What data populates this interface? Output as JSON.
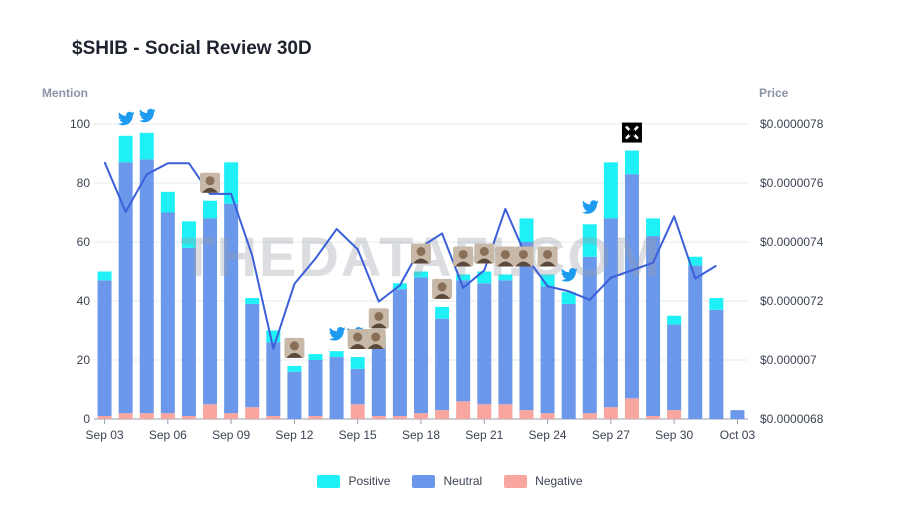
{
  "title": "$SHIB - Social Review 30D",
  "watermark": "THEDATAFI.COM",
  "colors": {
    "positive": "#1ff0f5",
    "neutral": "#6b98ea",
    "negative": "#f9a5a0",
    "price": "#3b5fd9",
    "grid": "#e6e8ec"
  },
  "chart_data": {
    "type": "bar",
    "stacked": true,
    "title": "$SHIB - Social Review 30D",
    "ylabel": "Mention",
    "y2label": "Price",
    "ylim": [
      0,
      100
    ],
    "y2lim": [
      6.8e-06,
      7.8e-06
    ],
    "yticks": [
      0,
      20,
      40,
      60,
      80,
      100
    ],
    "y2ticks": [
      "$0.0000068",
      "$0.000007",
      "$0.0000072",
      "$0.0000074",
      "$0.0000076",
      "$0.0000078"
    ],
    "y2tick_values": [
      6.8e-06,
      7e-06,
      7.2e-06,
      7.4e-06,
      7.6e-06,
      7.8e-06
    ],
    "xtick_labels": [
      "Sep 03",
      "Sep 06",
      "Sep 09",
      "Sep 12",
      "Sep 15",
      "Sep 18",
      "Sep 21",
      "Sep 24",
      "Sep 27",
      "Sep 30",
      "Oct 03"
    ],
    "xtick_index": [
      0,
      3,
      6,
      9,
      12,
      15,
      18,
      21,
      24,
      27,
      30
    ],
    "categories": [
      "Sep 03",
      "Sep 04",
      "Sep 05",
      "Sep 06",
      "Sep 07",
      "Sep 08",
      "Sep 09",
      "Sep 10",
      "Sep 11",
      "Sep 12",
      "Sep 13",
      "Sep 14",
      "Sep 15",
      "Sep 16",
      "Sep 17",
      "Sep 18",
      "Sep 19",
      "Sep 20",
      "Sep 21",
      "Sep 22",
      "Sep 23",
      "Sep 24",
      "Sep 25",
      "Sep 26",
      "Sep 27",
      "Sep 28",
      "Sep 29",
      "Sep 30",
      "Oct 01",
      "Oct 02",
      "Oct 03"
    ],
    "series": [
      {
        "name": "Negative",
        "values": [
          1,
          2,
          2,
          2,
          1,
          5,
          2,
          4,
          1,
          0,
          1,
          0,
          5,
          1,
          1,
          2,
          3,
          6,
          5,
          5,
          3,
          2,
          0,
          2,
          4,
          7,
          1,
          3,
          0,
          0,
          0
        ]
      },
      {
        "name": "Neutral",
        "values": [
          46,
          85,
          86,
          68,
          57,
          63,
          71,
          35,
          25,
          16,
          19,
          21,
          12,
          26,
          43,
          46,
          31,
          41,
          41,
          42,
          57,
          43,
          39,
          53,
          64,
          76,
          61,
          29,
          52,
          37,
          3
        ]
      },
      {
        "name": "Positive",
        "values": [
          3,
          9,
          9,
          7,
          9,
          6,
          14,
          2,
          4,
          2,
          2,
          2,
          4,
          1,
          2,
          2,
          4,
          2,
          4,
          2,
          8,
          4,
          4,
          11,
          19,
          8,
          6,
          3,
          3,
          4,
          0
        ]
      }
    ],
    "price": {
      "name": "Price",
      "values": [
        7.671e-06,
        7.502e-06,
        7.629e-06,
        7.667e-06,
        7.667e-06,
        7.563e-06,
        7.563e-06,
        7.354e-06,
        7.039e-06,
        7.258e-06,
        7.344e-06,
        7.444e-06,
        7.375e-06,
        7.198e-06,
        7.253e-06,
        7.383e-06,
        7.429e-06,
        7.245e-06,
        7.304e-06,
        7.512e-06,
        7.348e-06,
        7.25e-06,
        7.233e-06,
        7.204e-06,
        7.279e-06,
        7.304e-06,
        7.33e-06,
        7.487e-06,
        7.276e-06,
        7.32e-06
      ]
    },
    "legend": [
      "Positive",
      "Neutral",
      "Negative"
    ],
    "legend_position": "bottom-center",
    "annotations": [
      {
        "day": 1,
        "icon": "twitter-icon"
      },
      {
        "day": 2,
        "icon": "twitter-icon"
      },
      {
        "day": 5,
        "icon": "avatar-icon"
      },
      {
        "day": 9,
        "icon": "avatar-icon"
      },
      {
        "day": 11,
        "icon": "twitter-icon"
      },
      {
        "day": 11,
        "icon": "twitter-icon"
      },
      {
        "day": 12,
        "icon": "avatar-icon"
      },
      {
        "day": 12,
        "icon": "avatar-icon"
      },
      {
        "day": 13,
        "icon": "avatar-icon"
      },
      {
        "day": 15,
        "icon": "avatar-icon"
      },
      {
        "day": 16,
        "icon": "avatar-icon"
      },
      {
        "day": 17,
        "icon": "avatar-icon"
      },
      {
        "day": 18,
        "icon": "avatar-icon"
      },
      {
        "day": 18,
        "icon": "twitter-icon"
      },
      {
        "day": 19,
        "icon": "avatar-icon"
      },
      {
        "day": 19,
        "icon": "avatar-icon"
      },
      {
        "day": 21,
        "icon": "avatar-icon"
      },
      {
        "day": 22,
        "icon": "twitter-icon"
      },
      {
        "day": 23,
        "icon": "twitter-icon"
      },
      {
        "day": 25,
        "icon": "logo-icon"
      }
    ]
  },
  "axis": {
    "left_title": "Mention",
    "right_title": "Price"
  },
  "legend": [
    {
      "label": "Positive",
      "color": "#1ff0f5"
    },
    {
      "label": "Neutral",
      "color": "#6b98ea"
    },
    {
      "label": "Negative",
      "color": "#f9a5a0"
    }
  ]
}
